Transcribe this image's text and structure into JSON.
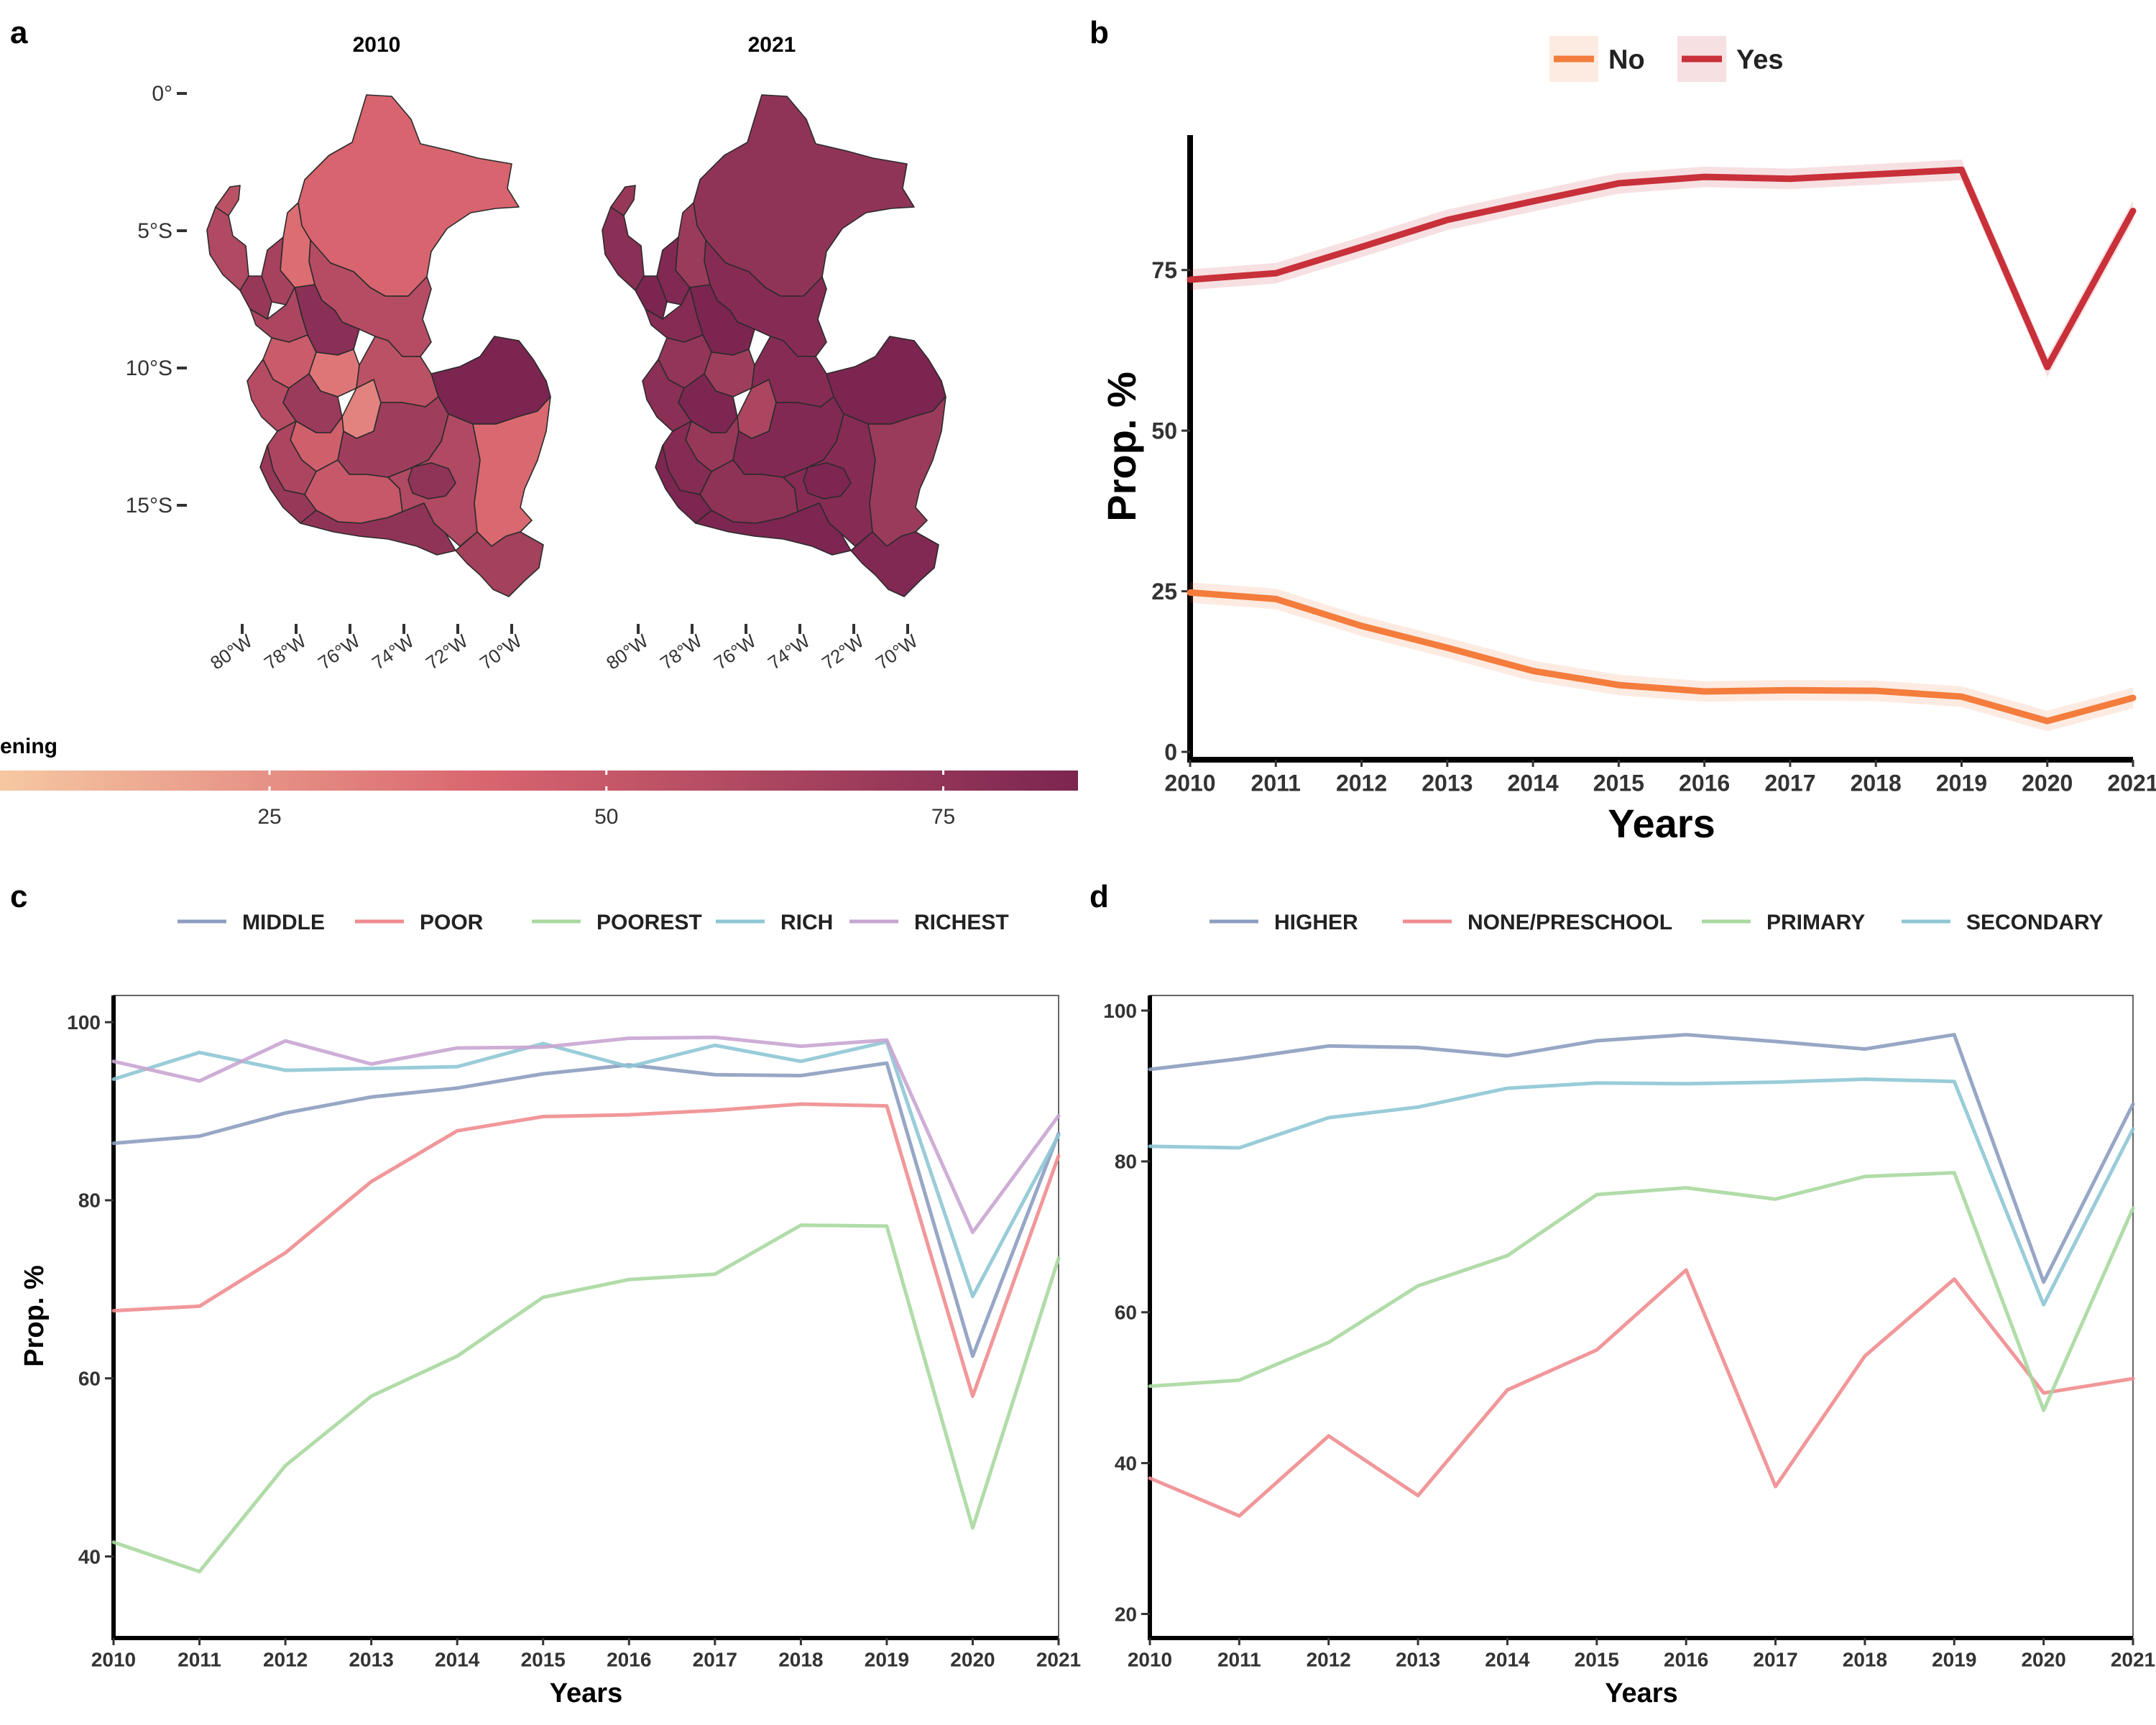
{
  "panel_letters": {
    "a": "a",
    "b": "b",
    "c": "c",
    "d": "d"
  },
  "colors": {
    "map_low": "#f6c8a2",
    "map_mid": "#d9656f",
    "map_high": "#7b2550",
    "no": "#f47c3c",
    "yes": "#c8303a",
    "middle": "#8c9dbf",
    "poor": "#ef8c8f",
    "poorest": "#a8d8a0",
    "rich": "#8ec7d4",
    "richest": "#c9a5d2",
    "higher": "#8c9dbf",
    "none_preschool": "#ef8c8f",
    "primary": "#a8d8a0",
    "secondary": "#8ec7d4"
  },
  "maps": {
    "titles": [
      "2010",
      "2021"
    ],
    "lat_ticks": [
      "0°",
      "5°S",
      "10°S",
      "15°S"
    ],
    "lon_ticks": [
      "80°W",
      "78°W",
      "76°W",
      "74°W",
      "72°W",
      "70°W"
    ],
    "legend_title": "ening",
    "legend_ticks": [
      "25",
      "50",
      "75"
    ],
    "legend_values": [
      25,
      50,
      75
    ],
    "legend_range": [
      5,
      85
    ],
    "region_values_2010": [
      42,
      58,
      38,
      65,
      72,
      60,
      55,
      78,
      62,
      48,
      35,
      58,
      70,
      30,
      55,
      45,
      62,
      72,
      68,
      85,
      50,
      60,
      75,
      40,
      66
    ],
    "region_values_2021": [
      75,
      80,
      70,
      82,
      85,
      78,
      72,
      86,
      80,
      74,
      68,
      78,
      84,
      62,
      80,
      72,
      80,
      84,
      82,
      88,
      76,
      80,
      84,
      70,
      82
    ]
  },
  "chart_data": [
    {
      "panel": "b",
      "type": "line",
      "title": "",
      "xlabel": "Years",
      "ylabel": "Prop. %",
      "x": [
        2010,
        2011,
        2012,
        2013,
        2014,
        2015,
        2016,
        2017,
        2018,
        2019,
        2020,
        2021
      ],
      "ylim": [
        -1,
        96
      ],
      "yticks": [
        0,
        25,
        50,
        75
      ],
      "ytick_labels": [
        "0",
        "25",
        "50",
        "75"
      ],
      "legend_position": "top",
      "series": [
        {
          "name": "No",
          "values": [
            24.8,
            23.8,
            19.6,
            16.2,
            12.6,
            10.4,
            9.4,
            9.6,
            9.5,
            8.6,
            4.8,
            8.4
          ],
          "band": 1.6
        },
        {
          "name": "Yes",
          "values": [
            73.5,
            74.5,
            78.6,
            82.8,
            85.7,
            88.5,
            89.5,
            89.2,
            89.9,
            90.6,
            59.9,
            84.2
          ],
          "band": 1.6
        }
      ],
      "grid": false
    },
    {
      "panel": "c",
      "type": "line",
      "title": "",
      "xlabel": "Years",
      "ylabel": "Prop. %",
      "x": [
        2010,
        2011,
        2012,
        2013,
        2014,
        2015,
        2016,
        2017,
        2018,
        2019,
        2020,
        2021
      ],
      "ylim": [
        31,
        103
      ],
      "yticks": [
        40,
        60,
        80,
        100
      ],
      "ytick_labels": [
        "40",
        "60",
        "80",
        "100"
      ],
      "legend_position": "top",
      "series": [
        {
          "name": "MIDDLE",
          "values": [
            86.4,
            87.2,
            89.8,
            91.6,
            92.6,
            94.2,
            95.2,
            94.1,
            94.0,
            95.4,
            62.5,
            87.5
          ]
        },
        {
          "name": "POOR",
          "values": [
            67.6,
            68.1,
            74.1,
            82.1,
            87.8,
            89.4,
            89.6,
            90.1,
            90.8,
            90.6,
            58.0,
            85.0
          ]
        },
        {
          "name": "POOREST",
          "values": [
            41.6,
            38.3,
            50.2,
            58.0,
            62.5,
            69.1,
            71.1,
            71.7,
            77.2,
            77.1,
            43.2,
            73.5
          ]
        },
        {
          "name": "RICH",
          "values": [
            93.6,
            96.6,
            94.6,
            94.8,
            95.0,
            97.6,
            95.0,
            97.4,
            95.6,
            97.8,
            69.2,
            87.3
          ]
        },
        {
          "name": "RICHEST",
          "values": [
            95.6,
            93.4,
            97.9,
            95.3,
            97.1,
            97.2,
            98.2,
            98.3,
            97.3,
            98.0,
            76.4,
            89.5
          ]
        }
      ],
      "grid": false
    },
    {
      "panel": "d",
      "type": "line",
      "title": "",
      "xlabel": "Years",
      "ylabel": "",
      "x": [
        2010,
        2011,
        2012,
        2013,
        2014,
        2015,
        2016,
        2017,
        2018,
        2019,
        2020,
        2021
      ],
      "ylim": [
        17,
        102
      ],
      "yticks": [
        20,
        40,
        60,
        80,
        100
      ],
      "ytick_labels": [
        "20",
        "40",
        "60",
        "80",
        "100"
      ],
      "legend_position": "top",
      "series": [
        {
          "name": "HIGHER",
          "values": [
            92.2,
            93.6,
            95.3,
            95.1,
            94.0,
            96.0,
            96.8,
            95.9,
            94.9,
            96.8,
            64.0,
            87.6
          ]
        },
        {
          "name": "NONE/PRESCHOOL",
          "values": [
            38.0,
            33.0,
            43.6,
            35.7,
            49.7,
            55.0,
            65.6,
            36.9,
            54.2,
            64.4,
            49.3,
            51.2
          ]
        },
        {
          "name": "PRIMARY",
          "values": [
            50.2,
            51.0,
            56.0,
            63.5,
            67.5,
            75.6,
            76.5,
            75.0,
            78.0,
            78.5,
            47.0,
            73.8
          ]
        },
        {
          "name": "SECONDARY",
          "values": [
            82.0,
            81.8,
            85.8,
            87.2,
            89.7,
            90.4,
            90.3,
            90.5,
            90.9,
            90.6,
            61.0,
            84.3
          ]
        }
      ],
      "grid": false
    }
  ]
}
